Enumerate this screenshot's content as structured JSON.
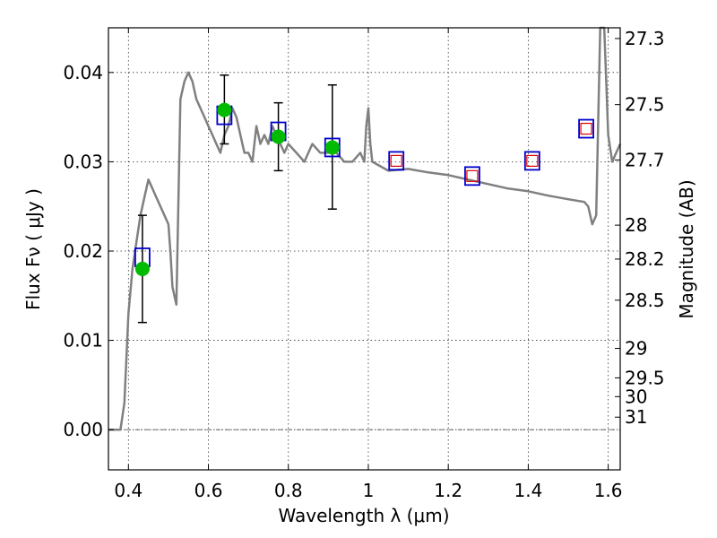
{
  "chart_data": {
    "type": "scatter",
    "xlabel": "Wavelength  λ (μm)",
    "ylabel": "Flux  Fν  ( μJy )",
    "ylabel_right": "Magnitude (AB)",
    "xlim": [
      0.35,
      1.63
    ],
    "ylim": [
      -0.0045,
      0.045
    ],
    "x_ticks": [
      0.4,
      0.6,
      0.8,
      1.0,
      1.2,
      1.4,
      1.6
    ],
    "x_tick_labels": [
      "0.4",
      "0.6",
      "0.8",
      "1",
      "1.2",
      "1.4",
      "1.6"
    ],
    "y_ticks": [
      0.0,
      0.01,
      0.02,
      0.03,
      0.04
    ],
    "y_tick_labels": [
      "0.00",
      "0.01",
      "0.02",
      "0.03",
      "0.04"
    ],
    "right_ticks": [
      {
        "flux": 0.0438,
        "label": "27.3"
      },
      {
        "flux": 0.0364,
        "label": "27.5"
      },
      {
        "flux": 0.0302,
        "label": "27.7"
      },
      {
        "flux": 0.0229,
        "label": "28"
      },
      {
        "flux": 0.0191,
        "label": "28.2"
      },
      {
        "flux": 0.0145,
        "label": "28.5"
      },
      {
        "flux": 0.0091,
        "label": "29"
      },
      {
        "flux": 0.0058,
        "label": "29.5"
      },
      {
        "flux": 0.0037,
        "label": "30"
      },
      {
        "flux": 0.0014,
        "label": "31"
      }
    ],
    "grid": true,
    "colors": {
      "sed": "#808080",
      "photometry_box": "#0000cc",
      "model_box": "#dd0000",
      "detections": "#00bb00",
      "errorbars": "#000000"
    },
    "series": [
      {
        "role": "model-sed-line",
        "x": [
          0.35,
          0.38,
          0.39,
          0.4,
          0.41,
          0.42,
          0.43,
          0.44,
          0.45,
          0.46,
          0.47,
          0.48,
          0.49,
          0.5,
          0.505,
          0.51,
          0.515,
          0.52,
          0.53,
          0.54,
          0.55,
          0.56,
          0.57,
          0.58,
          0.59,
          0.6,
          0.61,
          0.62,
          0.63,
          0.64,
          0.65,
          0.66,
          0.67,
          0.68,
          0.69,
          0.7,
          0.71,
          0.72,
          0.73,
          0.74,
          0.75,
          0.76,
          0.77,
          0.78,
          0.79,
          0.8,
          0.82,
          0.84,
          0.86,
          0.88,
          0.9,
          0.92,
          0.94,
          0.96,
          0.98,
          0.99,
          0.995,
          1.0,
          1.005,
          1.01,
          1.05,
          1.1,
          1.15,
          1.2,
          1.25,
          1.3,
          1.35,
          1.4,
          1.45,
          1.5,
          1.54,
          1.55,
          1.56,
          1.57,
          1.58,
          1.59,
          1.6,
          1.61,
          1.62,
          1.63
        ],
        "y": [
          0.0,
          0.0,
          0.003,
          0.013,
          0.018,
          0.021,
          0.024,
          0.026,
          0.028,
          0.027,
          0.026,
          0.025,
          0.024,
          0.023,
          0.02,
          0.016,
          0.015,
          0.014,
          0.037,
          0.039,
          0.04,
          0.039,
          0.037,
          0.036,
          0.035,
          0.034,
          0.033,
          0.032,
          0.031,
          0.033,
          0.034,
          0.036,
          0.035,
          0.033,
          0.031,
          0.031,
          0.03,
          0.034,
          0.032,
          0.033,
          0.032,
          0.034,
          0.033,
          0.032,
          0.031,
          0.032,
          0.031,
          0.03,
          0.032,
          0.031,
          0.031,
          0.031,
          0.03,
          0.03,
          0.031,
          0.03,
          0.034,
          0.036,
          0.032,
          0.03,
          0.029,
          0.0292,
          0.0288,
          0.0285,
          0.028,
          0.0275,
          0.027,
          0.0267,
          0.0262,
          0.0258,
          0.0255,
          0.025,
          0.023,
          0.024,
          0.045,
          0.045,
          0.033,
          0.03,
          0.031,
          0.032
        ]
      },
      {
        "role": "photometry-boxes",
        "x": [
          0.435,
          0.64,
          0.775,
          0.91,
          1.07,
          1.26,
          1.41,
          1.545
        ],
        "y": [
          0.0193,
          0.0352,
          0.0334,
          0.0316,
          0.0301,
          0.0284,
          0.0301,
          0.0337
        ]
      },
      {
        "role": "model-points",
        "x": [
          1.07,
          1.26,
          1.41,
          1.545
        ],
        "y": [
          0.0301,
          0.0284,
          0.0301,
          0.0337
        ]
      },
      {
        "role": "detections",
        "x": [
          0.435,
          0.64,
          0.775,
          0.91
        ],
        "y": [
          0.018,
          0.0358,
          0.0328,
          0.0316
        ],
        "yerr_low": [
          0.012,
          0.032,
          0.029,
          0.0247
        ],
        "yerr_high": [
          0.024,
          0.0397,
          0.0366,
          0.0386
        ]
      }
    ]
  }
}
